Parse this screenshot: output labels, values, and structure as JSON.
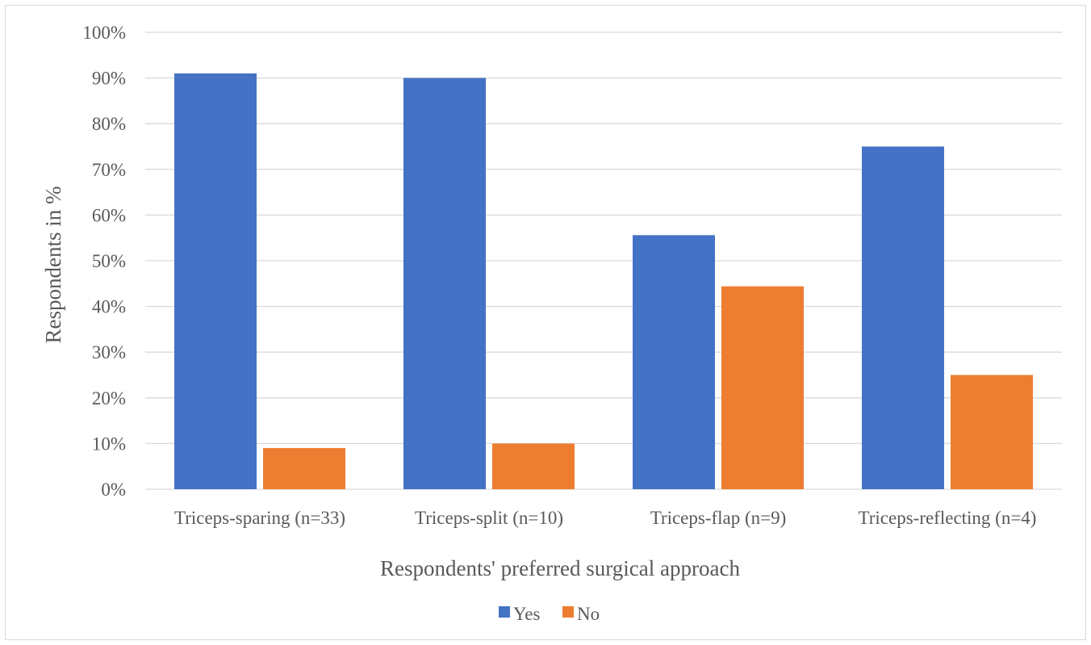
{
  "chart_data": {
    "type": "bar",
    "title": "",
    "xlabel": "Respondents' preferred surgical approach",
    "ylabel": "Respondents in %",
    "categories": [
      "Triceps-sparing (n=33)",
      "Triceps-split (n=10)",
      "Triceps-flap (n=9)",
      "Triceps-reflecting (n=4)"
    ],
    "series": [
      {
        "name": "Yes",
        "color": "#4472c4",
        "values": [
          91,
          90,
          55.6,
          75
        ]
      },
      {
        "name": "No",
        "color": "#ed7d31",
        "values": [
          9,
          10,
          44.4,
          25
        ]
      }
    ],
    "ylim": [
      0,
      100
    ],
    "yticks": [
      "0%",
      "10%",
      "20%",
      "30%",
      "40%",
      "50%",
      "60%",
      "70%",
      "80%",
      "90%",
      "100%"
    ],
    "grid": true,
    "legend_position": "bottom-center"
  }
}
